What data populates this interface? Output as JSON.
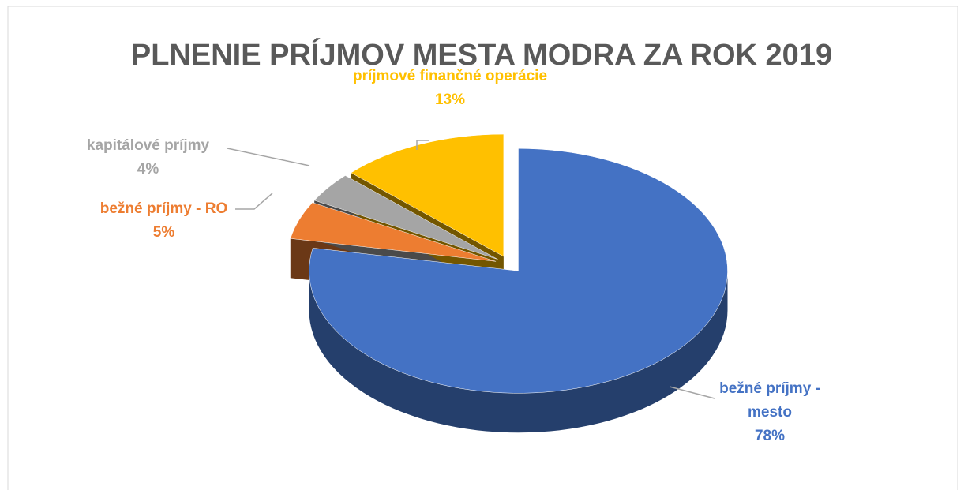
{
  "chart_data": {
    "type": "pie",
    "title": "PLNENIE PRÍJMOV MESTA MODRA ZA ROK 2019",
    "categories": [
      "bežné príjmy - mesto",
      "bežné príjmy - RO",
      "kapitálové príjmy",
      "príjmové finančné operácie"
    ],
    "values": [
      78,
      5,
      4,
      13
    ],
    "value_labels": [
      "78%",
      "5%",
      "4%",
      "13%"
    ],
    "colors": [
      "#4472c4",
      "#ed7d31",
      "#a5a5a5",
      "#ffc000"
    ]
  }
}
